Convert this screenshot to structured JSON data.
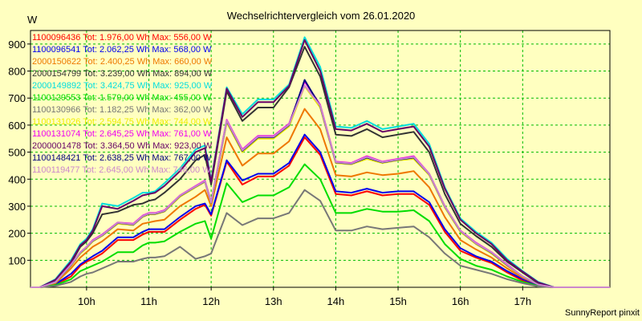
{
  "chart_data": {
    "type": "line",
    "title": "Wechselrichtervergleich vom 26.01.2020",
    "ylabel": "W",
    "footer": "SunnyReport pinxit",
    "xlim": [
      9.1,
      18.4
    ],
    "ylim": [
      0,
      950
    ],
    "x_ticks": [
      {
        "v": 10,
        "label": "10h"
      },
      {
        "v": 11,
        "label": "11h"
      },
      {
        "v": 12,
        "label": "12h"
      },
      {
        "v": 13,
        "label": "13h"
      },
      {
        "v": 14,
        "label": "14h"
      },
      {
        "v": 15,
        "label": "15h"
      },
      {
        "v": 16,
        "label": "16h"
      },
      {
        "v": 17,
        "label": "17h"
      }
    ],
    "y_ticks": [
      100,
      200,
      300,
      400,
      500,
      600,
      700,
      800,
      900
    ],
    "x": [
      9.1,
      9.25,
      9.5,
      9.75,
      9.9,
      10,
      10.1,
      10.25,
      10.5,
      10.75,
      10.9,
      11,
      11.1,
      11.25,
      11.5,
      11.75,
      11.9,
      12,
      12.25,
      12.5,
      12.75,
      12.9,
      13,
      13.25,
      13.5,
      13.75,
      14,
      14.25,
      14.5,
      14.75,
      15,
      15.25,
      15.5,
      15.75,
      16,
      16.25,
      16.5,
      16.75,
      17,
      17.25,
      17.5,
      17.75,
      18,
      18.25,
      18.4
    ],
    "series": [
      {
        "name": "1100096436",
        "legend": "1100096436 Tot: 1.976,00 Wh Max: 556,00 W",
        "color": "#ff0000",
        "values": [
          0,
          0,
          10,
          40,
          80,
          95,
          105,
          125,
          175,
          175,
          195,
          205,
          205,
          205,
          250,
          290,
          305,
          265,
          465,
          380,
          410,
          410,
          410,
          450,
          555,
          490,
          345,
          340,
          355,
          340,
          345,
          345,
          305,
          205,
          135,
          110,
          90,
          55,
          25,
          5,
          0,
          0,
          0,
          0,
          0
        ]
      },
      {
        "name": "1100096541",
        "legend": "1100096541 Tot: 2.062,25 Wh Max: 568,00 W",
        "color": "#0000ee",
        "values": [
          0,
          0,
          12,
          50,
          85,
          100,
          115,
          135,
          185,
          185,
          205,
          215,
          215,
          215,
          260,
          300,
          310,
          270,
          470,
          395,
          420,
          420,
          420,
          460,
          565,
          500,
          355,
          350,
          365,
          350,
          355,
          355,
          315,
          215,
          145,
          115,
          95,
          60,
          30,
          8,
          0,
          0,
          0,
          0,
          0
        ]
      },
      {
        "name": "2000150622",
        "legend": "2000150622 Tot: 2.400,25 Wh Max: 660,00 W",
        "color": "#ee7700",
        "values": [
          0,
          0,
          15,
          70,
          110,
          130,
          150,
          170,
          215,
          210,
          235,
          240,
          245,
          250,
          300,
          335,
          360,
          300,
          555,
          450,
          495,
          495,
          495,
          540,
          660,
          585,
          415,
          410,
          425,
          415,
          420,
          430,
          370,
          260,
          175,
          140,
          110,
          70,
          35,
          10,
          0,
          0,
          0,
          0,
          0
        ]
      },
      {
        "name": "2000154799",
        "legend": "2000154799 Tot: 3.239,00 Wh Max: 894,00 W",
        "color": "#333333",
        "values": [
          0,
          0,
          25,
          90,
          150,
          170,
          200,
          270,
          280,
          305,
          310,
          320,
          325,
          350,
          400,
          470,
          490,
          380,
          725,
          615,
          665,
          665,
          665,
          740,
          890,
          780,
          565,
          560,
          585,
          555,
          565,
          575,
          500,
          345,
          235,
          190,
          150,
          95,
          55,
          15,
          0,
          0,
          0,
          0,
          0
        ]
      },
      {
        "name": "2000149892",
        "legend": "2000149892 Tot: 3.424,75 Wh Max: 925,00 W",
        "color": "#00dddd",
        "values": [
          0,
          0,
          30,
          100,
          160,
          180,
          215,
          310,
          300,
          330,
          350,
          350,
          355,
          385,
          440,
          510,
          525,
          395,
          740,
          640,
          695,
          695,
          695,
          750,
          925,
          815,
          595,
          590,
          615,
          585,
          595,
          605,
          530,
          370,
          255,
          205,
          165,
          105,
          60,
          20,
          0,
          0,
          0,
          0,
          0
        ]
      },
      {
        "name": "1100129553",
        "legend": "1100129553 Tot: 1.579,00 Wh Max: 455,00 W",
        "color": "#00dd00",
        "values": [
          0,
          0,
          8,
          30,
          60,
          70,
          80,
          95,
          130,
          130,
          155,
          165,
          165,
          170,
          205,
          235,
          245,
          180,
          385,
          315,
          340,
          340,
          340,
          370,
          455,
          400,
          275,
          275,
          290,
          280,
          280,
          285,
          245,
          160,
          105,
          80,
          65,
          40,
          20,
          5,
          0,
          0,
          0,
          0,
          0
        ]
      },
      {
        "name": "1100130966",
        "legend": "1100130966 Tot: 1.182,25 Wh Max: 362,00 W",
        "color": "#777777",
        "values": [
          0,
          0,
          5,
          20,
          40,
          50,
          55,
          70,
          95,
          95,
          105,
          110,
          110,
          115,
          150,
          105,
          115,
          125,
          275,
          230,
          255,
          255,
          255,
          275,
          360,
          320,
          210,
          210,
          225,
          215,
          220,
          225,
          185,
          125,
          80,
          65,
          50,
          30,
          15,
          3,
          0,
          0,
          0,
          0,
          0
        ]
      },
      {
        "name": "1100131026",
        "legend": "1100131026 Tot: 2.594,75 Wh Max: 744,00 W",
        "color": "#eeee00",
        "values": [
          0,
          0,
          18,
          80,
          125,
          145,
          170,
          190,
          235,
          230,
          260,
          270,
          270,
          280,
          335,
          370,
          390,
          310,
          610,
          500,
          550,
          550,
          550,
          595,
          744,
          665,
          460,
          455,
          475,
          460,
          470,
          475,
          415,
          295,
          205,
          160,
          125,
          80,
          40,
          10,
          0,
          0,
          0,
          0,
          0
        ]
      },
      {
        "name": "1100131074",
        "legend": "1100131074 Tot: 2.645,25 Wh Max: 761,00 W",
        "color": "#ee00ee",
        "values": [
          0,
          0,
          20,
          85,
          130,
          150,
          175,
          195,
          240,
          235,
          265,
          275,
          275,
          285,
          340,
          375,
          395,
          315,
          620,
          510,
          560,
          560,
          560,
          605,
          761,
          675,
          465,
          460,
          485,
          465,
          475,
          485,
          420,
          300,
          210,
          165,
          130,
          85,
          40,
          10,
          0,
          0,
          0,
          0,
          0
        ]
      },
      {
        "name": "2000001478",
        "legend": "2000001478 Tot: 3.364,50 Wh Max: 923,00 W",
        "color": "#660066",
        "values": [
          0,
          0,
          28,
          95,
          155,
          175,
          210,
          300,
          290,
          320,
          340,
          345,
          350,
          375,
          430,
          500,
          515,
          390,
          735,
          630,
          685,
          685,
          685,
          745,
          915,
          800,
          585,
          580,
          605,
          575,
          585,
          595,
          520,
          365,
          250,
          200,
          160,
          100,
          58,
          18,
          0,
          0,
          0,
          0,
          0
        ]
      },
      {
        "name": "1100148421",
        "legend": "1100148421 Tot: 2.638,25 Wh Max: 767,00 W",
        "color": "#000080",
        "values": [
          0,
          0,
          19,
          82,
          128,
          148,
          172,
          192,
          238,
          232,
          262,
          272,
          272,
          282,
          338,
          372,
          392,
          312,
          615,
          505,
          555,
          555,
          555,
          600,
          767,
          670,
          462,
          457,
          480,
          462,
          472,
          480,
          418,
          298,
          208,
          162,
          128,
          82,
          40,
          10,
          0,
          0,
          0,
          0,
          0
        ]
      },
      {
        "name": "1100119477",
        "legend": "1100119477 Tot: 2.645,00 Wh Max: 746,00 W",
        "color": "#cc88cc",
        "values": [
          0,
          0,
          19,
          83,
          129,
          149,
          173,
          193,
          239,
          233,
          263,
          273,
          273,
          283,
          339,
          373,
          393,
          313,
          617,
          507,
          557,
          557,
          557,
          602,
          746,
          672,
          463,
          458,
          482,
          463,
          473,
          482,
          419,
          299,
          209,
          163,
          129,
          83,
          40,
          10,
          0,
          0,
          0,
          0,
          0
        ]
      }
    ]
  }
}
